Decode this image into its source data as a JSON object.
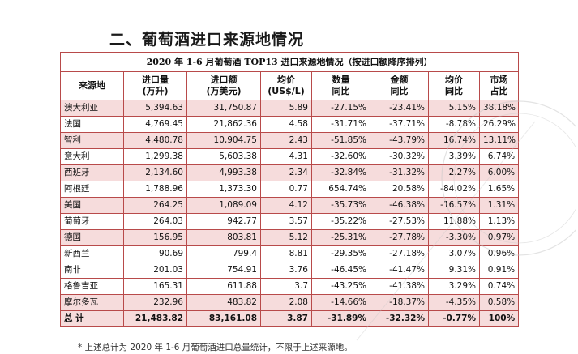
{
  "heading": "二、葡萄酒进口来源地情况",
  "table_title": "2020 年 1-6 月葡萄酒 TOP13 进口来源地情况（按进口额降序排列）",
  "columns": [
    {
      "line1": "来源地",
      "line2": ""
    },
    {
      "line1": "进口量",
      "line2": "(万升)"
    },
    {
      "line1": "进口额",
      "line2": "(万美元)"
    },
    {
      "line1": "均价",
      "line2": "(US$/L)"
    },
    {
      "line1": "数量",
      "line2": "同比"
    },
    {
      "line1": "金额",
      "line2": "同比"
    },
    {
      "line1": "均价",
      "line2": "同比"
    },
    {
      "line1": "市场",
      "line2": "占比"
    }
  ],
  "rows": [
    {
      "origin": "澳大利亚",
      "volume": "5,394.63",
      "value": "31,750.87",
      "price": "5.89",
      "vol_yoy": "-27.15%",
      "val_yoy": "-23.41%",
      "price_yoy": "5.15%",
      "share": "38.18%"
    },
    {
      "origin": "法国",
      "volume": "4,769.45",
      "value": "21,862.36",
      "price": "4.58",
      "vol_yoy": "-31.71%",
      "val_yoy": "-37.71%",
      "price_yoy": "-8.78%",
      "share": "26.29%"
    },
    {
      "origin": "智利",
      "volume": "4,480.78",
      "value": "10,904.75",
      "price": "2.43",
      "vol_yoy": "-51.85%",
      "val_yoy": "-43.79%",
      "price_yoy": "16.74%",
      "share": "13.11%"
    },
    {
      "origin": "意大利",
      "volume": "1,299.38",
      "value": "5,603.38",
      "price": "4.31",
      "vol_yoy": "-32.60%",
      "val_yoy": "-30.32%",
      "price_yoy": "3.39%",
      "share": "6.74%"
    },
    {
      "origin": "西班牙",
      "volume": "2,134.60",
      "value": "4,993.38",
      "price": "2.34",
      "vol_yoy": "-32.84%",
      "val_yoy": "-31.32%",
      "price_yoy": "2.27%",
      "share": "6.00%"
    },
    {
      "origin": "阿根廷",
      "volume": "1,788.96",
      "value": "1,373.30",
      "price": "0.77",
      "vol_yoy": "654.74%",
      "val_yoy": "20.58%",
      "price_yoy": "-84.02%",
      "share": "1.65%"
    },
    {
      "origin": "美国",
      "volume": "264.25",
      "value": "1,089.09",
      "price": "4.12",
      "vol_yoy": "-35.73%",
      "val_yoy": "-46.38%",
      "price_yoy": "-16.57%",
      "share": "1.31%"
    },
    {
      "origin": "葡萄牙",
      "volume": "264.03",
      "value": "942.77",
      "price": "3.57",
      "vol_yoy": "-35.22%",
      "val_yoy": "-27.53%",
      "price_yoy": "11.88%",
      "share": "1.13%"
    },
    {
      "origin": "德国",
      "volume": "156.95",
      "value": "803.81",
      "price": "5.12",
      "vol_yoy": "-25.31%",
      "val_yoy": "-27.78%",
      "price_yoy": "-3.30%",
      "share": "0.97%"
    },
    {
      "origin": "新西兰",
      "volume": "90.69",
      "value": "799.4",
      "price": "8.81",
      "vol_yoy": "-29.35%",
      "val_yoy": "-27.18%",
      "price_yoy": "3.07%",
      "share": "0.96%"
    },
    {
      "origin": "南非",
      "volume": "201.03",
      "value": "754.91",
      "price": "3.76",
      "vol_yoy": "-46.45%",
      "val_yoy": "-41.47%",
      "price_yoy": "9.31%",
      "share": "0.91%"
    },
    {
      "origin": "格鲁吉亚",
      "volume": "165.31",
      "value": "611.88",
      "price": "3.7",
      "vol_yoy": "-43.25%",
      "val_yoy": "-41.38%",
      "price_yoy": "3.29%",
      "share": "0.74%"
    },
    {
      "origin": "摩尔多瓦",
      "volume": "232.96",
      "value": "483.82",
      "price": "2.08",
      "vol_yoy": "-14.66%",
      "val_yoy": "-18.37%",
      "price_yoy": "-4.35%",
      "share": "0.58%"
    }
  ],
  "total": {
    "origin": "总 计",
    "volume": "21,483.82",
    "value": "83,161.08",
    "price": "3.87",
    "vol_yoy": "-31.89%",
    "val_yoy": "-32.32%",
    "price_yoy": "-0.77%",
    "share": "100%"
  },
  "footnote": "* 上述总计为 2020 年 1-6 月葡萄酒进口总量统计，不限于上述来源地。",
  "colors": {
    "border": "#b84a4a",
    "row_shade": "#f6dcdc"
  }
}
